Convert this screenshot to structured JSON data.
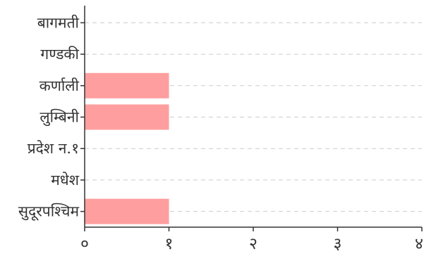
{
  "chart_data": {
    "type": "bar",
    "orientation": "horizontal",
    "categories": [
      "बागमती",
      "गण्डकी",
      "कर्णाली",
      "लुम्बिनी",
      "प्रदेश न.१",
      "मधेश",
      "सुदूरपश्चिम"
    ],
    "values": [
      0,
      0,
      1,
      1,
      0,
      0,
      1
    ],
    "xlim": [
      0,
      4
    ],
    "x_ticks": [
      0,
      1,
      2,
      3,
      4
    ],
    "x_tick_labels": [
      "०",
      "१",
      "२",
      "३",
      "४"
    ],
    "grid": "horizontal dashed",
    "legend": "none",
    "bar_color": "#ff9e9e",
    "axis_color": "#333333",
    "grid_color": "#cccccc",
    "title": "",
    "xlabel": "",
    "ylabel": ""
  }
}
